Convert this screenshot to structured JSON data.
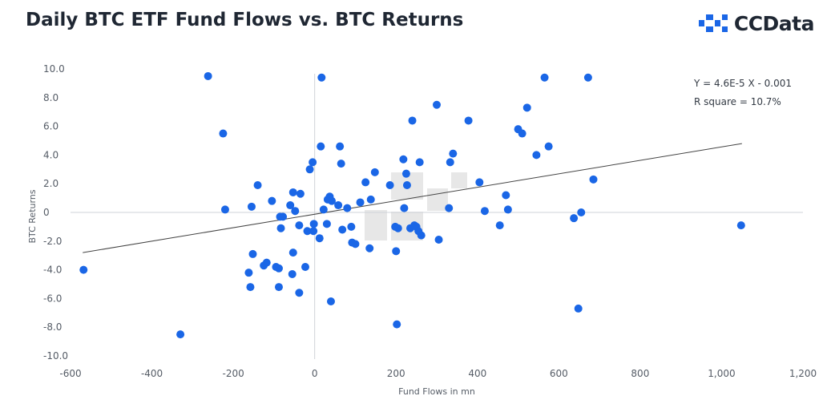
{
  "header": {
    "title": "Daily BTC ETF Fund Flows vs. BTC Returns",
    "logo_text": "CCData",
    "logo_icon": "ccdata-logo-icon"
  },
  "chart_data": {
    "type": "scatter",
    "title": "Daily BTC ETF Fund Flows vs. BTC Returns",
    "xlabel": "Fund Flows in mn",
    "ylabel": "BTC Returns",
    "xlim": [
      -600,
      1200
    ],
    "ylim": [
      -10,
      10
    ],
    "x_ticks": [
      -600,
      -400,
      -200,
      0,
      200,
      400,
      600,
      800,
      1000,
      1200
    ],
    "x_tick_labels": [
      "-600",
      "-400",
      "-200",
      "0",
      "200",
      "400",
      "600",
      "800",
      "1,000",
      "1,200"
    ],
    "y_ticks": [
      10,
      8,
      6,
      4,
      2,
      0,
      -2,
      -4,
      -6,
      -8,
      -10
    ],
    "y_tick_labels": [
      "10.0",
      "8.0",
      "6.0",
      "4.0",
      "2.0",
      "0",
      "-2.0",
      "-4.0",
      "-6.0",
      "-8.0",
      "-10.0"
    ],
    "grid": false,
    "point_color": "#1a66e6",
    "trendline_color": "#444444",
    "annotations": [
      "Y = 4.6E-5 X - 0.001",
      "R square = 10.7%"
    ],
    "trendline": {
      "x": [
        -570,
        1050
      ],
      "y": [
        -2.8,
        4.8
      ]
    },
    "points": [
      {
        "x": -568,
        "y": -4.0
      },
      {
        "x": -330,
        "y": -8.5
      },
      {
        "x": -262,
        "y": 9.5
      },
      {
        "x": -225,
        "y": 5.5
      },
      {
        "x": -220,
        "y": 0.2
      },
      {
        "x": -162,
        "y": -4.2
      },
      {
        "x": -158,
        "y": -5.2
      },
      {
        "x": -155,
        "y": 0.4
      },
      {
        "x": -152,
        "y": -2.9
      },
      {
        "x": -140,
        "y": 1.9
      },
      {
        "x": -125,
        "y": -3.7
      },
      {
        "x": -118,
        "y": -3.5
      },
      {
        "x": -105,
        "y": 0.8
      },
      {
        "x": -95,
        "y": -3.8
      },
      {
        "x": -88,
        "y": -3.9
      },
      {
        "x": -88,
        "y": -5.2
      },
      {
        "x": -85,
        "y": -0.3
      },
      {
        "x": -83,
        "y": -1.1
      },
      {
        "x": -78,
        "y": -0.3
      },
      {
        "x": -60,
        "y": 0.5
      },
      {
        "x": -55,
        "y": -4.3
      },
      {
        "x": -53,
        "y": 1.4
      },
      {
        "x": -53,
        "y": -2.8
      },
      {
        "x": -48,
        "y": 0.1
      },
      {
        "x": -38,
        "y": -5.6
      },
      {
        "x": -38,
        "y": -0.9
      },
      {
        "x": -35,
        "y": 1.3
      },
      {
        "x": -23,
        "y": -3.8
      },
      {
        "x": -18,
        "y": -1.3
      },
      {
        "x": -12,
        "y": 3.0
      },
      {
        "x": -5,
        "y": 3.5
      },
      {
        "x": -3,
        "y": -1.3
      },
      {
        "x": -2,
        "y": -0.8
      },
      {
        "x": 12,
        "y": -1.8
      },
      {
        "x": 15,
        "y": 4.6
      },
      {
        "x": 17,
        "y": 9.4
      },
      {
        "x": 22,
        "y": 0.2
      },
      {
        "x": 30,
        "y": -0.8
      },
      {
        "x": 32,
        "y": 0.9
      },
      {
        "x": 37,
        "y": 1.1
      },
      {
        "x": 40,
        "y": -6.2
      },
      {
        "x": 42,
        "y": 0.8
      },
      {
        "x": 58,
        "y": 0.5
      },
      {
        "x": 62,
        "y": 4.6
      },
      {
        "x": 65,
        "y": 3.4
      },
      {
        "x": 68,
        "y": -1.2
      },
      {
        "x": 80,
        "y": 0.3
      },
      {
        "x": 90,
        "y": -1.0
      },
      {
        "x": 92,
        "y": -2.1
      },
      {
        "x": 100,
        "y": -2.2
      },
      {
        "x": 112,
        "y": 0.7
      },
      {
        "x": 125,
        "y": 2.1
      },
      {
        "x": 135,
        "y": -2.5
      },
      {
        "x": 138,
        "y": 0.9
      },
      {
        "x": 148,
        "y": 2.8
      },
      {
        "x": 185,
        "y": 1.9
      },
      {
        "x": 198,
        "y": -1.0
      },
      {
        "x": 200,
        "y": -2.7
      },
      {
        "x": 202,
        "y": -7.8
      },
      {
        "x": 205,
        "y": -1.1
      },
      {
        "x": 218,
        "y": 3.7
      },
      {
        "x": 220,
        "y": 0.3
      },
      {
        "x": 225,
        "y": 2.7
      },
      {
        "x": 227,
        "y": 1.9
      },
      {
        "x": 235,
        "y": -1.1
      },
      {
        "x": 240,
        "y": 6.4
      },
      {
        "x": 245,
        "y": -0.9
      },
      {
        "x": 250,
        "y": -1.0
      },
      {
        "x": 255,
        "y": -1.3
      },
      {
        "x": 258,
        "y": 3.5
      },
      {
        "x": 262,
        "y": -1.6
      },
      {
        "x": 300,
        "y": 7.5
      },
      {
        "x": 305,
        "y": -1.9
      },
      {
        "x": 330,
        "y": 0.3
      },
      {
        "x": 333,
        "y": 3.5
      },
      {
        "x": 340,
        "y": 4.1
      },
      {
        "x": 378,
        "y": 6.4
      },
      {
        "x": 405,
        "y": 2.1
      },
      {
        "x": 418,
        "y": 0.1
      },
      {
        "x": 455,
        "y": -0.9
      },
      {
        "x": 470,
        "y": 1.2
      },
      {
        "x": 475,
        "y": 0.2
      },
      {
        "x": 500,
        "y": 5.8
      },
      {
        "x": 510,
        "y": 5.5
      },
      {
        "x": 522,
        "y": 7.3
      },
      {
        "x": 545,
        "y": 4.0
      },
      {
        "x": 565,
        "y": 9.4
      },
      {
        "x": 575,
        "y": 4.6
      },
      {
        "x": 637,
        "y": -0.4
      },
      {
        "x": 648,
        "y": -6.7
      },
      {
        "x": 655,
        "y": 0.0
      },
      {
        "x": 672,
        "y": 9.4
      },
      {
        "x": 685,
        "y": 2.3
      },
      {
        "x": 1048,
        "y": -0.9
      }
    ]
  }
}
